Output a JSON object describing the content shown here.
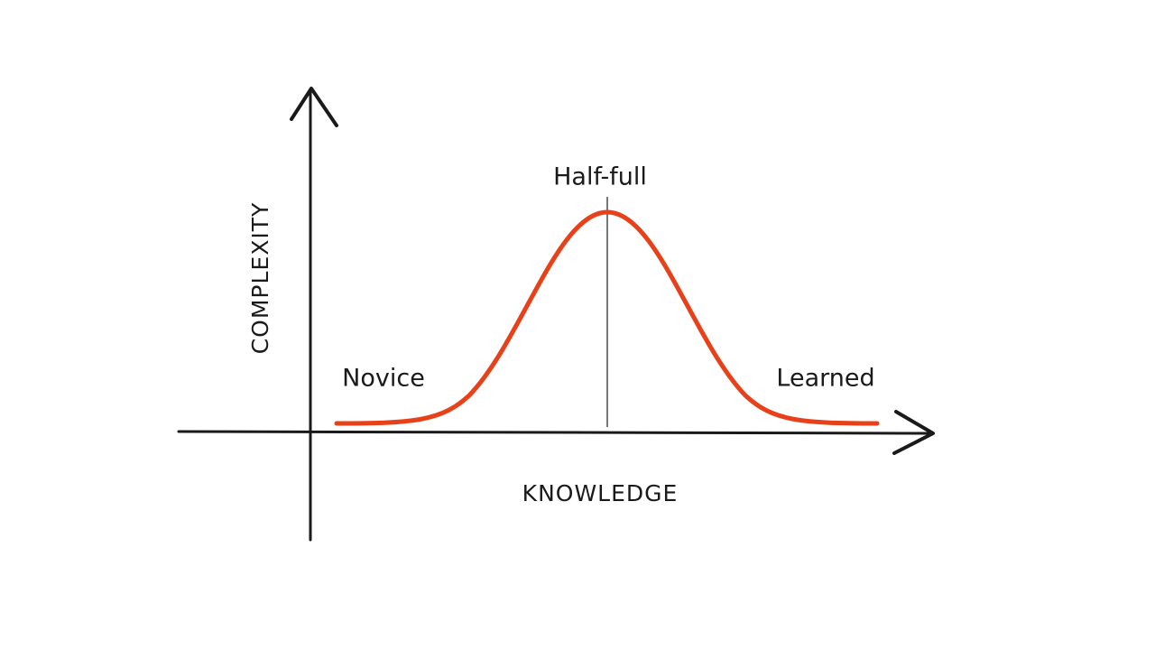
{
  "axes": {
    "x_label": "KNOWLEDGE",
    "y_label": "COMPLEXITY"
  },
  "annotations": {
    "left": "Novice",
    "peak": "Half-full",
    "right": "Learned"
  }
}
